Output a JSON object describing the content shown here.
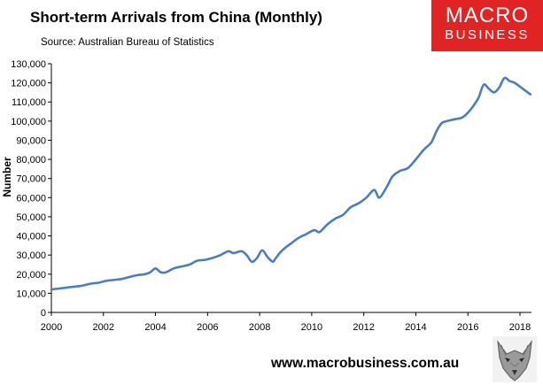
{
  "title": "Short-term Arrivals from China (Monthly)",
  "subtitle": "Source: Australian Bureau of Statistics",
  "logo": {
    "line1": "MACRO",
    "line2": "BUSINESS",
    "color": "#e02424"
  },
  "website": "www.macrobusiness.com.au",
  "chart_data": {
    "type": "line",
    "ylabel": "Number",
    "ylim": [
      0,
      130000
    ],
    "yticks": [
      "0",
      "10,000",
      "20,000",
      "30,000",
      "40,000",
      "50,000",
      "60,000",
      "70,000",
      "80,000",
      "90,000",
      "100,000",
      "110,000",
      "120,000",
      "130,000"
    ],
    "xlim": [
      2000,
      2018.4
    ],
    "xticks": [
      "2000",
      "2002",
      "2004",
      "2006",
      "2008",
      "2010",
      "2012",
      "2014",
      "2016",
      "2018"
    ],
    "grid": false,
    "line_color": "#4a7ebf",
    "series": [
      {
        "name": "",
        "x": [
          2000.0,
          2000.3,
          2000.6,
          2000.9,
          2001.2,
          2001.5,
          2001.8,
          2002.1,
          2002.4,
          2002.7,
          2003.0,
          2003.3,
          2003.6,
          2003.8,
          2004.0,
          2004.2,
          2004.4,
          2004.7,
          2005.0,
          2005.3,
          2005.6,
          2005.9,
          2006.2,
          2006.5,
          2006.8,
          2007.0,
          2007.3,
          2007.5,
          2007.7,
          2007.9,
          2008.1,
          2008.3,
          2008.5,
          2008.6,
          2008.8,
          2009.0,
          2009.2,
          2009.5,
          2009.8,
          2010.1,
          2010.3,
          2010.6,
          2010.9,
          2011.2,
          2011.5,
          2011.8,
          2012.1,
          2012.4,
          2012.6,
          2012.9,
          2013.1,
          2013.4,
          2013.7,
          2014.0,
          2014.3,
          2014.6,
          2014.8,
          2015.0,
          2015.2,
          2015.5,
          2015.8,
          2016.1,
          2016.4,
          2016.6,
          2016.8,
          2017.0,
          2017.2,
          2017.4,
          2017.6,
          2017.8,
          2018.0,
          2018.2,
          2018.4
        ],
        "values": [
          12000,
          12500,
          13000,
          13500,
          14000,
          15000,
          15500,
          16500,
          17000,
          17500,
          18500,
          19500,
          20000,
          21000,
          23000,
          21000,
          21000,
          23000,
          24000,
          25000,
          27000,
          27500,
          28500,
          30000,
          32000,
          31000,
          32000,
          30000,
          26500,
          28500,
          32500,
          29000,
          26500,
          28000,
          31500,
          34000,
          36000,
          39000,
          41000,
          43000,
          42000,
          46000,
          49000,
          51000,
          55000,
          57000,
          60000,
          64000,
          60000,
          66000,
          71000,
          74000,
          75500,
          80000,
          85000,
          89000,
          95000,
          99000,
          100000,
          101000,
          102000,
          106000,
          112000,
          119000,
          117000,
          115000,
          117500,
          122500,
          121000,
          120000,
          118000,
          116000,
          114000
        ]
      }
    ]
  }
}
